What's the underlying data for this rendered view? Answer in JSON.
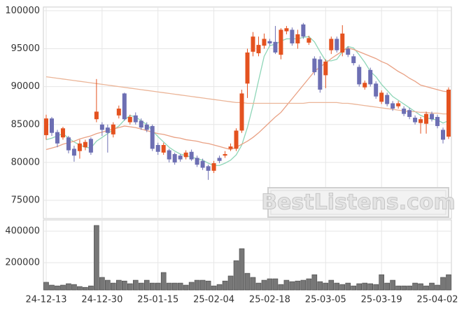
{
  "chart_data": [
    {
      "type": "candlestick",
      "open": [
        83600,
        85800,
        84000,
        83300,
        83300,
        81800,
        81500,
        82000,
        83100,
        85700,
        85000,
        84600,
        83700,
        86200,
        89100,
        85300,
        86200,
        85500,
        85000,
        84800,
        82300,
        81300,
        81600,
        81100,
        80900,
        80700,
        81400,
        80600,
        80200,
        79500,
        78900,
        80600,
        80900,
        81800,
        81800,
        84200,
        90400,
        94600,
        94400,
        95400,
        96000,
        95900,
        94200,
        97300,
        97500,
        95700,
        98200,
        95800,
        93700,
        93600,
        91500,
        94800,
        96300,
        94500,
        95000,
        94000,
        92600,
        89900,
        92200,
        90400,
        88000,
        88900,
        87800,
        87400,
        87100,
        86900,
        85900,
        85200,
        85100,
        86400,
        86000,
        84300,
        83400
      ],
      "high": [
        86300,
        86000,
        84300,
        84700,
        83500,
        82200,
        83000,
        83000,
        83300,
        91000,
        85300,
        85000,
        85300,
        87500,
        89200,
        86300,
        86600,
        85800,
        85300,
        85000,
        82600,
        82600,
        81800,
        81300,
        81100,
        81600,
        81700,
        80900,
        80500,
        79700,
        80200,
        80900,
        81500,
        82500,
        84500,
        89600,
        95000,
        97200,
        96600,
        97000,
        96300,
        98000,
        97700,
        98000,
        97800,
        97500,
        98400,
        96700,
        94000,
        94000,
        93600,
        96600,
        96600,
        98100,
        95300,
        94300,
        92900,
        90800,
        92500,
        90700,
        89500,
        89200,
        88100,
        88100,
        87400,
        87200,
        86200,
        86000,
        86700,
        86700,
        86300,
        84600,
        89900
      ],
      "low": [
        83000,
        83500,
        82000,
        83000,
        81200,
        80100,
        80500,
        81600,
        81000,
        85300,
        83500,
        81300,
        83300,
        85800,
        85500,
        85000,
        85000,
        84300,
        84000,
        81500,
        81000,
        81000,
        80000,
        79700,
        80100,
        80400,
        80200,
        79400,
        79000,
        77700,
        78600,
        79900,
        80600,
        81500,
        81500,
        83900,
        88500,
        94000,
        94000,
        95000,
        95400,
        94300,
        93600,
        96900,
        95400,
        95000,
        96300,
        95500,
        91500,
        89200,
        89800,
        94300,
        94500,
        94000,
        93900,
        92800,
        90000,
        89600,
        90000,
        88400,
        87700,
        87400,
        86800,
        87100,
        86100,
        85700,
        85000,
        83800,
        83800,
        85400,
        84500,
        82500,
        83100
      ],
      "close": [
        85800,
        83900,
        82500,
        84500,
        81600,
        80900,
        82500,
        82700,
        81300,
        86700,
        84300,
        83900,
        85000,
        87100,
        85700,
        86000,
        85300,
        84600,
        84300,
        81800,
        81400,
        82300,
        80400,
        80000,
        80400,
        81300,
        80400,
        79700,
        79300,
        78900,
        79900,
        80200,
        81100,
        82100,
        84200,
        89100,
        94500,
        96600,
        95500,
        96300,
        95700,
        94500,
        97500,
        97700,
        95700,
        96900,
        96600,
        96400,
        91900,
        89600,
        93300,
        96300,
        94800,
        97000,
        94200,
        93100,
        90300,
        90500,
        90300,
        88700,
        89200,
        87700,
        87100,
        87800,
        86400,
        86000,
        85300,
        85700,
        86400,
        85700,
        84800,
        83000,
        89600
      ],
      "up_color": "#e4521f",
      "down_color": "#6d6fb3",
      "series": [
        {
          "color": "#8fd6b8",
          "values": [
            83000,
            83200,
            83500,
            83800,
            83200,
            82700,
            82300,
            82000,
            81900,
            82800,
            83300,
            83800,
            84300,
            84800,
            85600,
            86200,
            86000,
            85500,
            85000,
            84200,
            83400,
            82700,
            82000,
            81500,
            81100,
            80900,
            80700,
            80500,
            80300,
            79900,
            79600,
            79600,
            79900,
            80300,
            81000,
            82300,
            84600,
            87500,
            90800,
            94000,
            95400,
            95600,
            96000,
            96300,
            96300,
            96300,
            96500,
            96600,
            95900,
            94600,
            93400,
            93400,
            93600,
            94600,
            95300,
            95100,
            94200,
            93200,
            92000,
            91300,
            90300,
            89500,
            88700,
            88200,
            87700,
            87200,
            86700,
            86200,
            85900,
            85700,
            85600,
            85200,
            85500
          ]
        },
        {
          "color": "#e9a184",
          "values": [
            81700,
            81900,
            82100,
            82400,
            82600,
            82800,
            83100,
            83300,
            83500,
            83800,
            84000,
            84200,
            84400,
            84600,
            84800,
            84700,
            84600,
            84400,
            84200,
            84000,
            83800,
            83700,
            83500,
            83300,
            83200,
            83000,
            82900,
            82800,
            82600,
            82500,
            82300,
            82100,
            81900,
            81700,
            82000,
            82400,
            82800,
            83300,
            83900,
            84600,
            85300,
            86000,
            86600,
            87500,
            88400,
            89300,
            90200,
            91100,
            92000,
            92600,
            93100,
            93700,
            94200,
            94700,
            95100,
            94900,
            94600,
            94300,
            94000,
            93700,
            93300,
            93000,
            92500,
            92000,
            91600,
            91100,
            90700,
            90200,
            90000,
            89800,
            89600,
            89400,
            89300
          ]
        },
        {
          "color": "#ebb598",
          "values": [
            91300,
            91200,
            91100,
            91000,
            90900,
            90800,
            90700,
            90600,
            90500,
            90400,
            90300,
            90200,
            90100,
            90000,
            89900,
            89800,
            89700,
            89600,
            89500,
            89400,
            89300,
            89200,
            89100,
            89000,
            88900,
            88800,
            88700,
            88600,
            88500,
            88400,
            88300,
            88200,
            88100,
            88000,
            87900,
            87900,
            87800,
            87800,
            87800,
            87800,
            87800,
            87800,
            87800,
            87800,
            87800,
            87800,
            87800,
            87900,
            87900,
            87900,
            87900,
            87900,
            87900,
            87800,
            87800,
            87700,
            87600,
            87500,
            87400,
            87300,
            87200,
            87100,
            87000,
            86900,
            86800,
            86700,
            86700,
            86600,
            86600,
            86500,
            86500,
            86400,
            86400
          ]
        }
      ],
      "ylim": [
        72600,
        100500
      ],
      "yticks": [
        75000,
        80000,
        85000,
        90000,
        95000,
        100000
      ],
      "grid": true,
      "watermark": "BestListens.com"
    },
    {
      "type": "bar",
      "categories": [
        "24-12-13",
        null,
        null,
        null,
        null,
        null,
        null,
        null,
        null,
        null,
        "24-12-30",
        null,
        null,
        null,
        null,
        null,
        null,
        null,
        null,
        null,
        "25-01-15",
        null,
        null,
        null,
        null,
        null,
        null,
        null,
        null,
        null,
        "25-02-04",
        null,
        null,
        null,
        null,
        null,
        null,
        null,
        null,
        null,
        "25-02-18",
        null,
        null,
        null,
        null,
        null,
        null,
        null,
        null,
        null,
        "25-03-05",
        null,
        null,
        null,
        null,
        null,
        null,
        null,
        null,
        null,
        "25-03-19",
        null,
        null,
        null,
        null,
        null,
        null,
        null,
        null,
        null,
        "25-04-02",
        null,
        null
      ],
      "values": [
        76000,
        58000,
        53000,
        58000,
        67000,
        62000,
        49000,
        44000,
        53000,
        436000,
        107000,
        89000,
        71000,
        89000,
        84000,
        67000,
        89000,
        71000,
        89000,
        71000,
        71000,
        138000,
        71000,
        71000,
        71000,
        58000,
        76000,
        89000,
        89000,
        84000,
        53000,
        62000,
        84000,
        116000,
        213000,
        289000,
        133000,
        107000,
        71000,
        89000,
        98000,
        98000,
        62000,
        89000,
        80000,
        84000,
        89000,
        98000,
        124000,
        80000,
        71000,
        89000,
        71000,
        62000,
        71000,
        53000,
        67000,
        71000,
        67000,
        62000,
        124000,
        71000,
        89000,
        53000,
        53000,
        53000,
        71000,
        67000,
        53000,
        71000,
        58000,
        107000,
        124000
      ],
      "color": "#777777",
      "ylim": [
        27000,
        471000
      ],
      "yticks": [
        200000,
        400000
      ],
      "grid": true
    }
  ]
}
